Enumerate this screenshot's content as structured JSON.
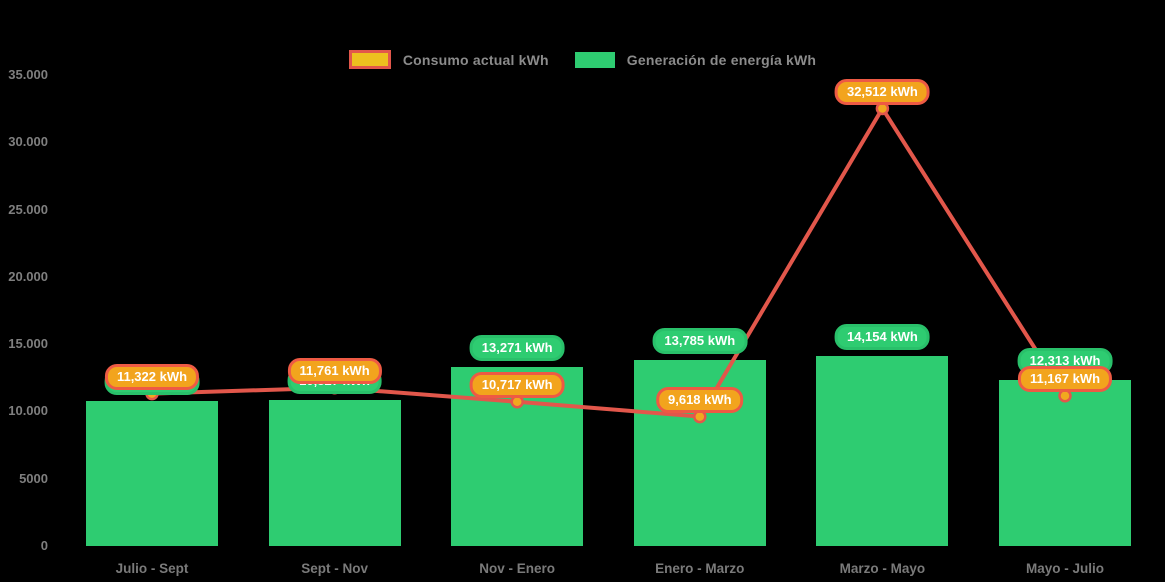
{
  "colors": {
    "background": "#000000",
    "bar": "#2ecc71",
    "bar_pill_fill": "#2ecc71",
    "bar_pill_border": "#29c06a",
    "line": "#e2574b",
    "marker_fill": "#f1a81f",
    "line_pill_fill": "#f2a41d",
    "line_pill_border": "#ee5a44",
    "axis_text": "#7f7f7f",
    "legend_text": "#8b8b8b"
  },
  "legend": [
    {
      "label": "Consumo actual kWh",
      "swatch_fill": "#edc11f",
      "swatch_border": "#e2574b"
    },
    {
      "label": "Generación de energía kWh",
      "swatch_fill": "#2ecc71",
      "swatch_border": "#2ecc71"
    }
  ],
  "chart_data": {
    "type": "bar+line",
    "title": "",
    "xlabel": "",
    "ylabel": "",
    "ylim": [
      0,
      35000
    ],
    "grid": false,
    "legend_position": "top-center",
    "categories": [
      "Julio - Sept",
      "Sept - Nov",
      "Nov - Enero",
      "Enero - Marzo",
      "Marzo - Mayo",
      "Mayo - Julio"
    ],
    "yticks": [
      {
        "value": 35000,
        "label": "35.000"
      },
      {
        "value": 30000,
        "label": "30.000"
      },
      {
        "value": 25000,
        "label": "25.000"
      },
      {
        "value": 20000,
        "label": "20.000"
      },
      {
        "value": 15000,
        "label": "15.000"
      },
      {
        "value": 10000,
        "label": "10.000"
      },
      {
        "value": 5000,
        "label": "5000"
      },
      {
        "value": 0,
        "label": "0"
      }
    ],
    "series": [
      {
        "name": "Generación de energía kWh",
        "type": "bar",
        "color": "#2ecc71",
        "values": [
          10744,
          10827,
          13271,
          13785,
          14154,
          12313
        ],
        "point_labels": [
          "10,744 kWh",
          "10,827 kWh",
          "13,271 kWh",
          "13,785 kWh",
          "14,154 kWh",
          "12,313 kWh"
        ]
      },
      {
        "name": "Consumo actual kWh",
        "type": "line",
        "color": "#e2574b",
        "values": [
          11322,
          11761,
          10717,
          9618,
          32512,
          11167
        ],
        "point_labels": [
          "11,322 kWh",
          "11,761 kWh",
          "10,717 kWh",
          "9,618 kWh",
          "32,512 kWh",
          "11,167 kWh"
        ]
      }
    ]
  }
}
